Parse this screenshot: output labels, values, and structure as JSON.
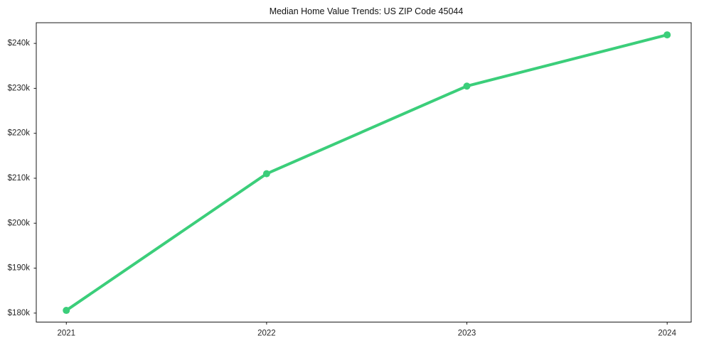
{
  "chart_data": {
    "type": "line",
    "title": "Median Home Value Trends: US ZIP Code 45044",
    "xlabel": "",
    "ylabel": "",
    "categories": [
      2021,
      2022,
      2023,
      2024
    ],
    "x_tick_labels": [
      "2021",
      "2022",
      "2023",
      "2024"
    ],
    "series": [
      {
        "name": "Median Home Value",
        "values": [
          180600,
          211000,
          230500,
          241900
        ],
        "color": "#3bce7a"
      }
    ],
    "y_ticks": [
      180000,
      190000,
      200000,
      210000,
      220000,
      230000,
      240000
    ],
    "y_tick_labels": [
      "$180k",
      "$190k",
      "$200k",
      "$210k",
      "$220k",
      "$230k",
      "$240k"
    ],
    "xlim": [
      2020.85,
      2024.12
    ],
    "ylim": [
      178000,
      244600
    ],
    "grid": false,
    "legend": "none",
    "style": {
      "background": "#ffffff",
      "spine_color": "#1a1a1a",
      "tick_color": "#1a1a1a",
      "tick_label_color": "#262626",
      "title_color": "#111111",
      "line_width": 4,
      "marker_radius": 5
    }
  }
}
